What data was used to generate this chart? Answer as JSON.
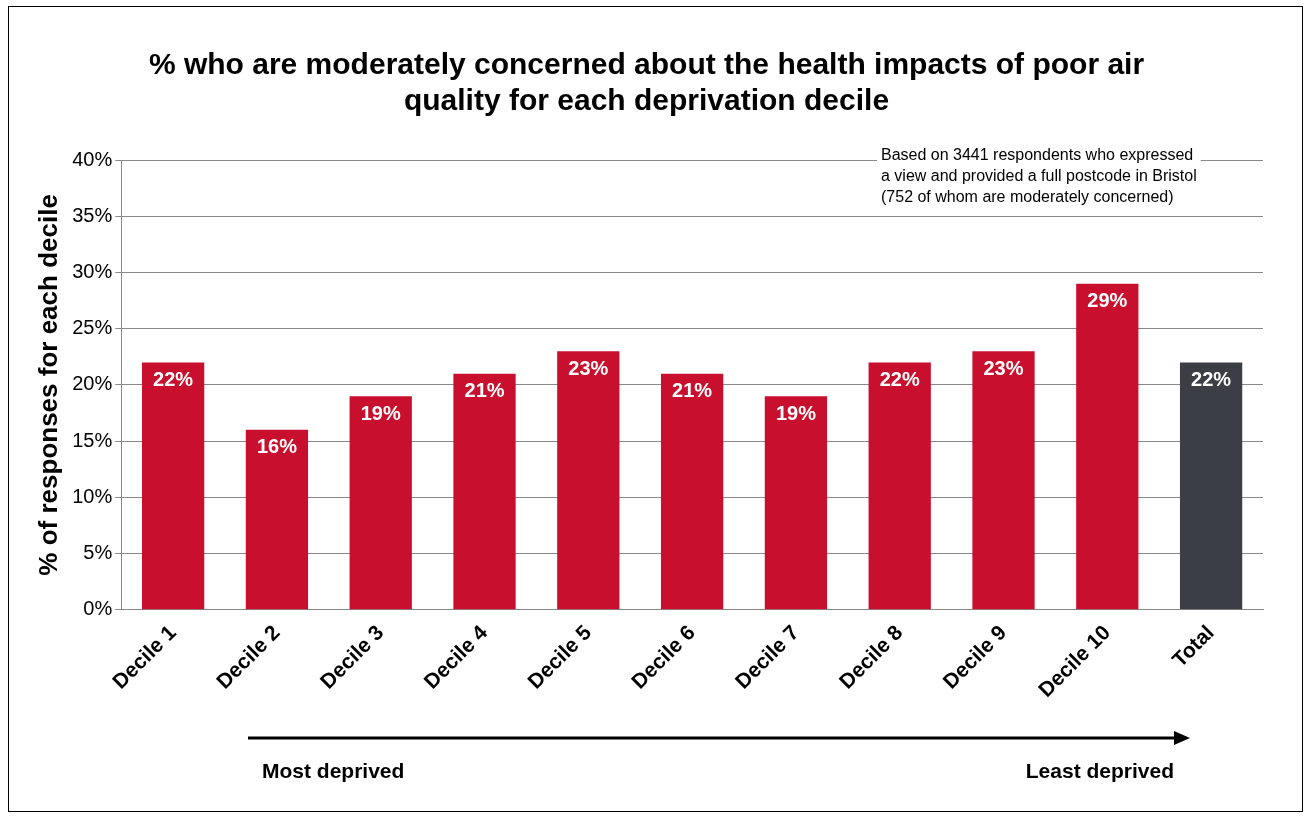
{
  "chart_data": {
    "type": "bar",
    "title": "% who are moderately concerned about the health impacts of poor air quality for each deprivation decile",
    "ylabel": "% of responses for each decile",
    "categories": [
      "Decile 1",
      "Decile 2",
      "Decile 3",
      "Decile 4",
      "Decile 5",
      "Decile 6",
      "Decile 7",
      "Decile 8",
      "Decile 9",
      "Decile 10",
      "Total"
    ],
    "values": [
      22,
      16,
      19,
      21,
      23,
      21,
      19,
      22,
      23,
      29,
      22
    ],
    "value_labels": [
      "22%",
      "16%",
      "19%",
      "21%",
      "23%",
      "21%",
      "19%",
      "22%",
      "23%",
      "29%",
      "22%"
    ],
    "colors": [
      "#c8102e",
      "#c8102e",
      "#c8102e",
      "#c8102e",
      "#c8102e",
      "#c8102e",
      "#c8102e",
      "#c8102e",
      "#c8102e",
      "#c8102e",
      "#3b3e44"
    ],
    "ylim": [
      0,
      40
    ],
    "yticks": [
      {
        "value": 0,
        "label": "0%"
      },
      {
        "value": 5,
        "label": "5%"
      },
      {
        "value": 10,
        "label": "10%"
      },
      {
        "value": 15,
        "label": "15%"
      },
      {
        "value": 20,
        "label": "20%"
      },
      {
        "value": 25,
        "label": "25%"
      },
      {
        "value": 30,
        "label": "30%"
      },
      {
        "value": 35,
        "label": "35%"
      },
      {
        "value": 40,
        "label": "40%"
      }
    ],
    "grid": "y",
    "legend": false,
    "annotations": [
      "Based on 3441 respondents who expressed\na view and provided a full postcode in Bristol\n(752 of whom are moderately concerned)",
      "Most deprived",
      "Least deprived"
    ]
  }
}
